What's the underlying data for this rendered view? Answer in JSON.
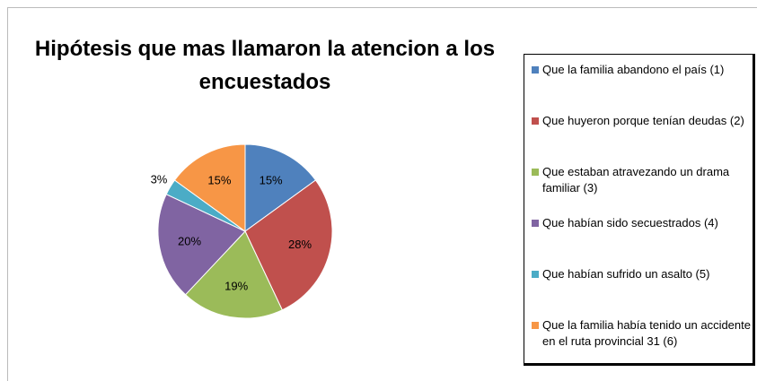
{
  "chart_data": {
    "type": "pie",
    "title": "Hipótesis que mas llamaron la atencion a los encuestados",
    "categories": [
      "Que la familia abandono el país (1)",
      "Que huyeron porque tenían deudas (2)",
      "Que estaban atravezando un drama familiar (3)",
      "Que habían sido secuestrados (4)",
      "Que habían sufrido un asalto (5)",
      "Que la familia había tenido un accidente en el ruta provincial 31 (6)"
    ],
    "values": [
      15,
      28,
      19,
      20,
      3,
      15
    ],
    "value_labels": [
      "15%",
      "28%",
      "19%",
      "20%",
      "3%",
      "15%"
    ],
    "colors": [
      "#4f81bd",
      "#c0504d",
      "#9bbb59",
      "#8064a2",
      "#4bacc6",
      "#f79646"
    ],
    "legend": "right"
  }
}
